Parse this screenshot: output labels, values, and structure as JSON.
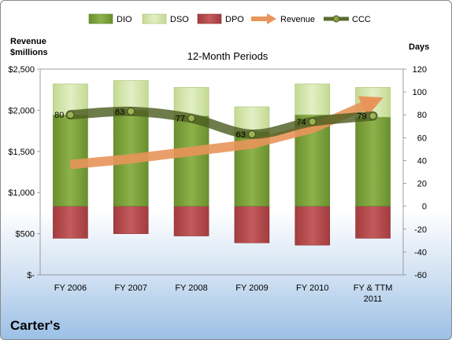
{
  "company": "Carter's",
  "chart_data": {
    "type": "bar",
    "title": "12-Month Periods",
    "ylabel_left": [
      "Revenue",
      "$millions"
    ],
    "ylabel_right": "Days",
    "categories": [
      [
        "FY 2006"
      ],
      [
        "FY 2007"
      ],
      [
        "FY 2008"
      ],
      [
        "FY 2009"
      ],
      [
        "FY 2010"
      ],
      [
        "FY & TTM",
        "2011"
      ]
    ],
    "left_ticks": [
      "$-",
      "$500",
      "$1,000",
      "$1,500",
      "$2,000",
      "$2,500"
    ],
    "right_ticks": [
      "-60",
      "-40",
      "-20",
      "0",
      "20",
      "40",
      "60",
      "80",
      "100",
      "120"
    ],
    "ylim_left": [
      0,
      2500
    ],
    "ylim_right": [
      -60,
      120
    ],
    "legend_position": "top",
    "colors": {
      "DIO": "#7ba23a",
      "DSO": "#d4e6a8",
      "DPO": "#b8484a",
      "Revenue": "#e8955a",
      "CCC": "#5a6b2c"
    },
    "series": [
      {
        "name": "DIO",
        "axis": "right",
        "values": [
          80,
          84,
          79,
          65,
          80,
          78
        ]
      },
      {
        "name": "DSO",
        "axis": "right",
        "values": [
          27,
          26,
          25,
          22,
          27,
          26
        ]
      },
      {
        "name": "DPO",
        "axis": "right",
        "values": [
          -28,
          -24,
          -26,
          -32,
          -34,
          -28
        ]
      },
      {
        "name": "Revenue",
        "axis": "left",
        "values": [
          1340,
          1410,
          1500,
          1590,
          1780,
          2100
        ]
      },
      {
        "name": "CCC",
        "axis": "right",
        "values": [
          80,
          83,
          77,
          63,
          74,
          79
        ],
        "data_labels": [
          "80",
          "83",
          "77",
          "63",
          "74",
          "79"
        ]
      }
    ]
  }
}
